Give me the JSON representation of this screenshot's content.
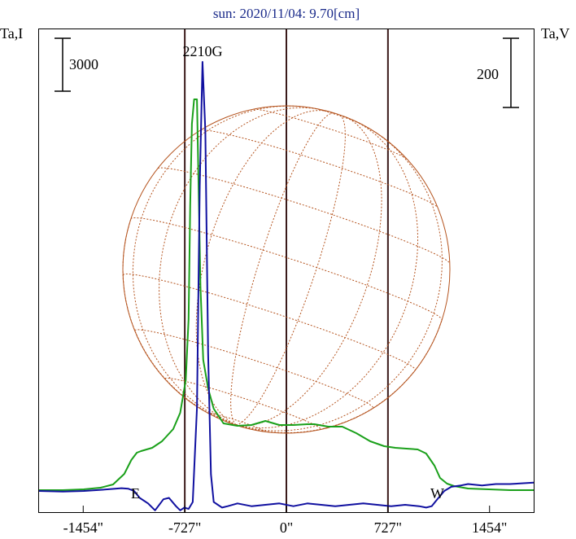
{
  "chart_data": {
    "type": "line",
    "title": "sun: 2020/11/04: 9.70[cm]",
    "left_axis_label": "Ta,I",
    "right_axis_label": "Ta,V",
    "scale_bar_left": "3000",
    "scale_bar_right": "200",
    "x_range": [
      -1770,
      1770
    ],
    "x_tick_values": [
      -1454,
      -727,
      0,
      727,
      1454
    ],
    "x_tick_labels": [
      "-1454\"",
      "-727\"",
      "0\"",
      "727\"",
      "1454\""
    ],
    "vertical_lines_at": [
      -727,
      0,
      727
    ],
    "annotations": [
      {
        "text": "2210G",
        "x": -600
      },
      {
        "text": "E",
        "x": -1080
      },
      {
        "text": "W",
        "x": 1080
      }
    ],
    "colors": {
      "stokes_I": "#1aa01a",
      "stokes_V": "#1010a0",
      "solar_disk": "#b5541f",
      "grid_lines": "#3a1a1a",
      "title": "#1a2a8a"
    },
    "series": [
      {
        "color": "#1aa01a",
        "x": [
          -1770,
          -1600,
          -1450,
          -1330,
          -1240,
          -1160,
          -1110,
          -1070,
          -1040,
          -960,
          -890,
          -810,
          -760,
          -720,
          -700,
          -688,
          -676,
          -660,
          -640,
          -615,
          -595,
          -560,
          -520,
          -450,
          -350,
          -250,
          -150,
          -50,
          0,
          50,
          150,
          200,
          300,
          400,
          500,
          600,
          700,
          780,
          860,
          940,
          1000,
          1060,
          1100,
          1150,
          1200,
          1300,
          1450,
          1600,
          1770
        ],
        "y": [
          0.0,
          0.0,
          0.01,
          0.03,
          0.07,
          0.2,
          0.37,
          0.46,
          0.48,
          0.52,
          0.6,
          0.75,
          0.95,
          1.35,
          2.1,
          3.5,
          4.5,
          4.8,
          4.8,
          2.5,
          1.6,
          1.25,
          1.0,
          0.82,
          0.79,
          0.8,
          0.85,
          0.8,
          0.8,
          0.8,
          0.81,
          0.81,
          0.78,
          0.78,
          0.7,
          0.6,
          0.54,
          0.52,
          0.51,
          0.5,
          0.45,
          0.3,
          0.15,
          0.08,
          0.05,
          0.02,
          0.01,
          0.0,
          0.0
        ]
      },
      {
        "color": "#1010a0",
        "x": [
          -1770,
          -1600,
          -1450,
          -1300,
          -1180,
          -1130,
          -1090,
          -1050,
          -990,
          -940,
          -880,
          -840,
          -790,
          -760,
          -730,
          -700,
          -670,
          -640,
          -620,
          -600,
          -580,
          -560,
          -540,
          -520,
          -490,
          -460,
          -420,
          -350,
          -250,
          -150,
          -50,
          50,
          150,
          250,
          350,
          450,
          550,
          650,
          750,
          850,
          950,
          1000,
          1040,
          1080,
          1130,
          1180,
          1250,
          1300,
          1400,
          1500,
          1600,
          1770
        ],
        "y": [
          0,
          -2,
          0,
          5,
          10,
          8,
          0,
          -25,
          -45,
          -70,
          -30,
          -25,
          -55,
          -70,
          -60,
          -65,
          -40,
          300,
          1100,
          1550,
          1300,
          500,
          60,
          -40,
          -50,
          -60,
          -55,
          -45,
          -55,
          -50,
          -45,
          -55,
          -45,
          -50,
          -55,
          -50,
          -45,
          -50,
          -55,
          -50,
          -55,
          -60,
          -55,
          -30,
          0,
          15,
          20,
          25,
          20,
          25,
          25,
          30
        ]
      }
    ]
  }
}
